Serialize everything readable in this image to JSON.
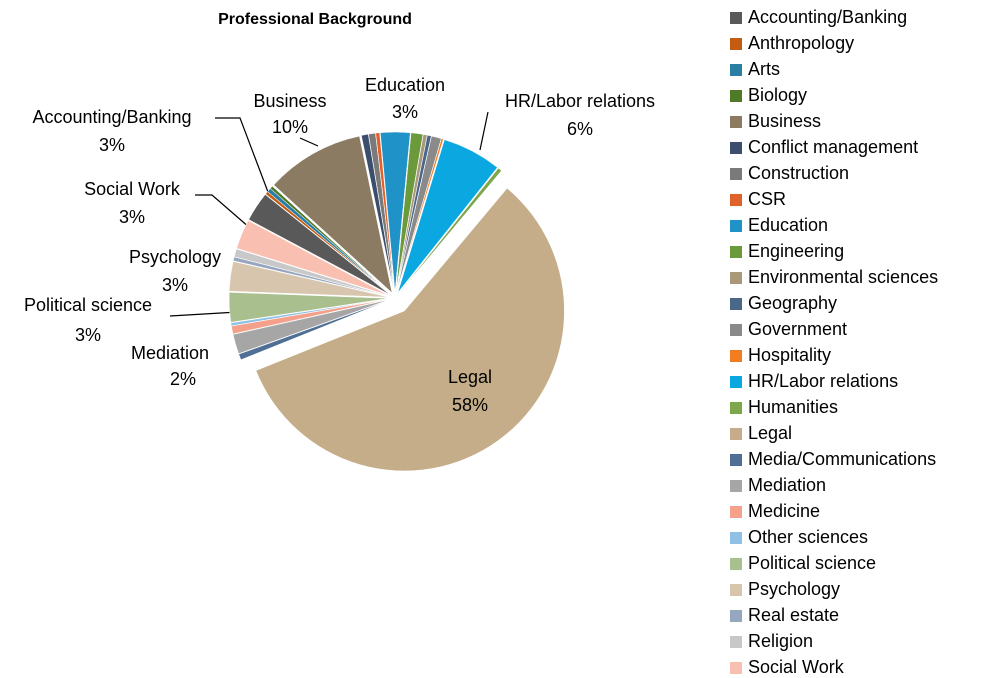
{
  "chart_data": {
    "type": "pie",
    "title": "Professional Background",
    "categories": [
      "Accounting/Banking",
      "Anthropology",
      "Arts",
      "Biology",
      "Business",
      "Conflict management",
      "Construction",
      "CSR",
      "Education",
      "Engineering",
      "Environmental sciences",
      "Geography",
      "Government",
      "Hospitality",
      "HR/Labor relations",
      "Humanities",
      "Legal",
      "Media/Communications",
      "Mediation",
      "Medicine",
      "Other sciences",
      "Political science",
      "Psychology",
      "Real estate",
      "Religion",
      "Social Work"
    ],
    "values": [
      3,
      0.3,
      0.4,
      0.3,
      10,
      0.7,
      0.7,
      0.4,
      3,
      1.2,
      0.4,
      0.4,
      1,
      0.2,
      6,
      0.4,
      58,
      0.6,
      2,
      0.8,
      0.3,
      3,
      3,
      0.4,
      0.8,
      3
    ],
    "value_labels": [
      "3%",
      null,
      null,
      null,
      "10%",
      null,
      null,
      null,
      "3%",
      null,
      null,
      null,
      null,
      null,
      "6%",
      null,
      "58%",
      null,
      "2%",
      null,
      null,
      "3%",
      "3%",
      null,
      null,
      "3%"
    ],
    "colors": [
      "#595959",
      "#c55a11",
      "#2a7ea4",
      "#4f7a28",
      "#8c7b63",
      "#3b4e6b",
      "#7a7a7a",
      "#e0622a",
      "#1f93c8",
      "#6b9a3c",
      "#a9987a",
      "#4a6688",
      "#8a8a8a",
      "#f47c20",
      "#0ba7e0",
      "#7ea64b",
      "#c4ad88",
      "#4f6f94",
      "#a6a6a6",
      "#f4a08a",
      "#8ec1e4",
      "#a9c08e",
      "#d7c6ad",
      "#97a6bf",
      "#c8c8c8",
      "#f9c0b2"
    ],
    "legend": "right"
  }
}
